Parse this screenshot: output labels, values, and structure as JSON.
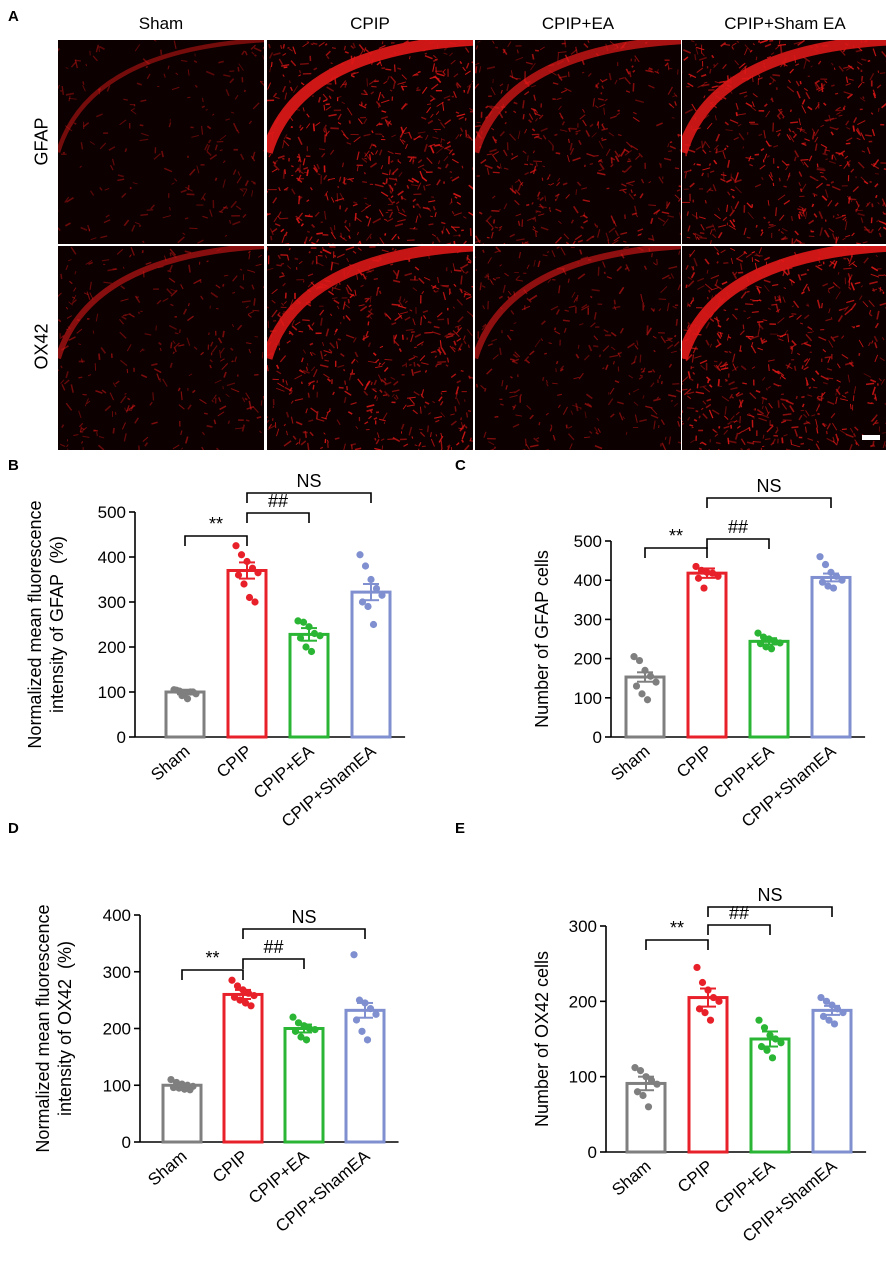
{
  "figure": {
    "panel_letters": [
      "A",
      "B",
      "C",
      "D",
      "E"
    ],
    "microscopy": {
      "columns": [
        "Sham",
        "CPIP",
        "CPIP+EA",
        "CPIP+Sham EA"
      ],
      "rows": [
        "GFAP",
        "OX42"
      ],
      "intensity": [
        [
          0.15,
          0.85,
          0.55,
          0.8
        ],
        [
          0.3,
          0.8,
          0.35,
          0.85
        ]
      ]
    }
  },
  "colors": {
    "Sham": "#7f7f7f",
    "CPIP": "#e8202a",
    "CPIP+EA": "#2bb534",
    "CPIP+ShamEA": "#7f8fcf",
    "stain": "#e01818"
  },
  "chart_data": [
    {
      "panel": "B",
      "type": "bar",
      "categories": [
        "Sham",
        "CPIP",
        "CPIP+EA",
        "CPIP+ShamEA"
      ],
      "values": [
        100,
        370,
        228,
        322
      ],
      "sem": [
        5,
        18,
        14,
        18
      ],
      "points": [
        [
          105,
          102,
          98,
          100,
          96,
          104,
          92,
          85,
          100
        ],
        [
          425,
          405,
          390,
          375,
          365,
          360,
          340,
          310,
          300
        ],
        [
          258,
          255,
          245,
          230,
          225,
          220,
          200,
          190
        ],
        [
          405,
          380,
          350,
          330,
          315,
          300,
          290,
          250
        ]
      ],
      "ylabel_lines": [
        "Normalized mean fluorescence",
        "intensity of GFAP  (%)"
      ],
      "ylim": [
        0,
        500
      ],
      "yticks": [
        0,
        100,
        200,
        300,
        400,
        500
      ],
      "annotations": [
        {
          "text": "**",
          "from": 0,
          "to": 1
        },
        {
          "text": "##",
          "from": 1,
          "to": 2
        },
        {
          "text": "NS",
          "from": 1,
          "to": 3
        }
      ]
    },
    {
      "panel": "C",
      "type": "bar",
      "categories": [
        "Sham",
        "CPIP",
        "CPIP+EA",
        "CPIP+ShamEA"
      ],
      "values": [
        153,
        418,
        244,
        407
      ],
      "sem": [
        12,
        12,
        8,
        10
      ],
      "points": [
        [
          205,
          195,
          170,
          155,
          140,
          130,
          110,
          95
        ],
        [
          435,
          425,
          420,
          418,
          410,
          405,
          380
        ],
        [
          265,
          255,
          250,
          245,
          240,
          238,
          230,
          225
        ],
        [
          460,
          440,
          420,
          410,
          400,
          395,
          385,
          380
        ]
      ],
      "ylabel_lines": [
        "Number of GFAP cells"
      ],
      "ylim": [
        0,
        500
      ],
      "yticks": [
        0,
        100,
        200,
        300,
        400,
        500
      ],
      "annotations": [
        {
          "text": "**",
          "from": 0,
          "to": 1
        },
        {
          "text": "##",
          "from": 1,
          "to": 2
        },
        {
          "text": "NS",
          "from": 1,
          "to": 3
        }
      ]
    },
    {
      "panel": "D",
      "type": "bar",
      "categories": [
        "Sham",
        "CPIP",
        "CPIP+EA",
        "CPIP+ShamEA"
      ],
      "values": [
        100,
        260,
        200,
        232
      ],
      "sem": [
        3,
        8,
        7,
        13
      ],
      "points": [
        [
          110,
          105,
          102,
          100,
          98,
          96,
          95,
          93,
          92
        ],
        [
          285,
          275,
          268,
          262,
          258,
          255,
          250,
          245,
          240
        ],
        [
          220,
          210,
          205,
          200,
          198,
          195,
          185,
          180
        ],
        [
          330,
          250,
          245,
          235,
          225,
          215,
          195,
          180
        ]
      ],
      "ylabel_lines": [
        "Normalized mean fluorescence",
        "intensity of OX42  (%)"
      ],
      "ylim": [
        0,
        400
      ],
      "yticks": [
        0,
        100,
        200,
        300,
        400
      ],
      "annotations": [
        {
          "text": "**",
          "from": 0,
          "to": 1
        },
        {
          "text": "##",
          "from": 1,
          "to": 2
        },
        {
          "text": "NS",
          "from": 1,
          "to": 3
        }
      ]
    },
    {
      "panel": "E",
      "type": "bar",
      "categories": [
        "Sham",
        "CPIP",
        "CPIP+EA",
        "CPIP+ShamEA"
      ],
      "values": [
        91,
        205,
        150,
        188
      ],
      "sem": [
        9,
        12,
        10,
        6
      ],
      "points": [
        [
          112,
          108,
          100,
          95,
          90,
          80,
          75,
          60
        ],
        [
          245,
          225,
          215,
          205,
          200,
          190,
          185,
          175
        ],
        [
          175,
          165,
          155,
          150,
          145,
          140,
          135,
          125
        ],
        [
          205,
          200,
          195,
          190,
          185,
          180,
          175,
          170
        ]
      ],
      "ylabel_lines": [
        "Number of OX42 cells"
      ],
      "ylim": [
        0,
        300
      ],
      "yticks": [
        0,
        100,
        200,
        300
      ],
      "annotations": [
        {
          "text": "**",
          "from": 0,
          "to": 1
        },
        {
          "text": "##",
          "from": 1,
          "to": 2
        },
        {
          "text": "NS",
          "from": 1,
          "to": 3
        }
      ]
    }
  ]
}
